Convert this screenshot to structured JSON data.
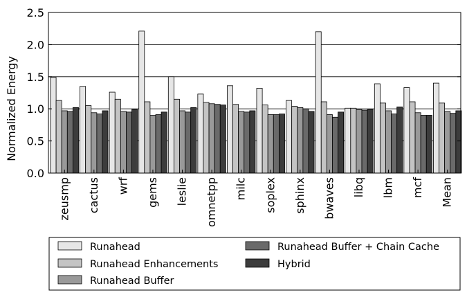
{
  "chart_data": {
    "type": "bar",
    "title": "",
    "xlabel": "",
    "ylabel": "Normalized Energy",
    "ylim": [
      0,
      2.5
    ],
    "yticks": [
      "0.0",
      "0.5",
      "1.0",
      "1.5",
      "2.0",
      "2.5"
    ],
    "grid": "horizontal",
    "legend_position": "bottom",
    "categories": [
      "zeusmp",
      "cactus",
      "wrf",
      "gems",
      "leslie",
      "omnetpp",
      "milc",
      "soplex",
      "sphinx",
      "bwaves",
      "libq",
      "lbm",
      "mcf",
      "Mean"
    ],
    "series": [
      {
        "name": "Runahead",
        "color": "#e6e6e6",
        "values": [
          1.49,
          1.35,
          1.26,
          2.21,
          1.5,
          1.23,
          1.36,
          1.32,
          1.13,
          2.2,
          1.01,
          1.39,
          1.33,
          1.4
        ]
      },
      {
        "name": "Runahead Enhancements",
        "color": "#c4c4c4",
        "values": [
          1.13,
          1.05,
          1.15,
          1.11,
          1.15,
          1.1,
          1.07,
          1.06,
          1.04,
          1.11,
          1.01,
          1.09,
          1.11,
          1.09
        ]
      },
      {
        "name": "Runahead Buffer",
        "color": "#999999",
        "values": [
          0.97,
          0.94,
          0.96,
          0.9,
          0.97,
          1.08,
          0.96,
          0.91,
          1.02,
          0.91,
          0.99,
          0.97,
          0.94,
          0.96
        ]
      },
      {
        "name": "Runahead Buffer + Chain Cache",
        "color": "#6a6a6a",
        "values": [
          0.96,
          0.92,
          0.95,
          0.91,
          0.95,
          1.07,
          0.95,
          0.91,
          1.0,
          0.87,
          0.98,
          0.92,
          0.9,
          0.93
        ]
      },
      {
        "name": "Hybrid",
        "color": "#3c3c3c",
        "values": [
          1.02,
          0.97,
          0.99,
          0.95,
          1.02,
          1.06,
          0.97,
          0.92,
          0.96,
          0.95,
          0.99,
          1.03,
          0.9,
          0.97
        ]
      }
    ]
  }
}
